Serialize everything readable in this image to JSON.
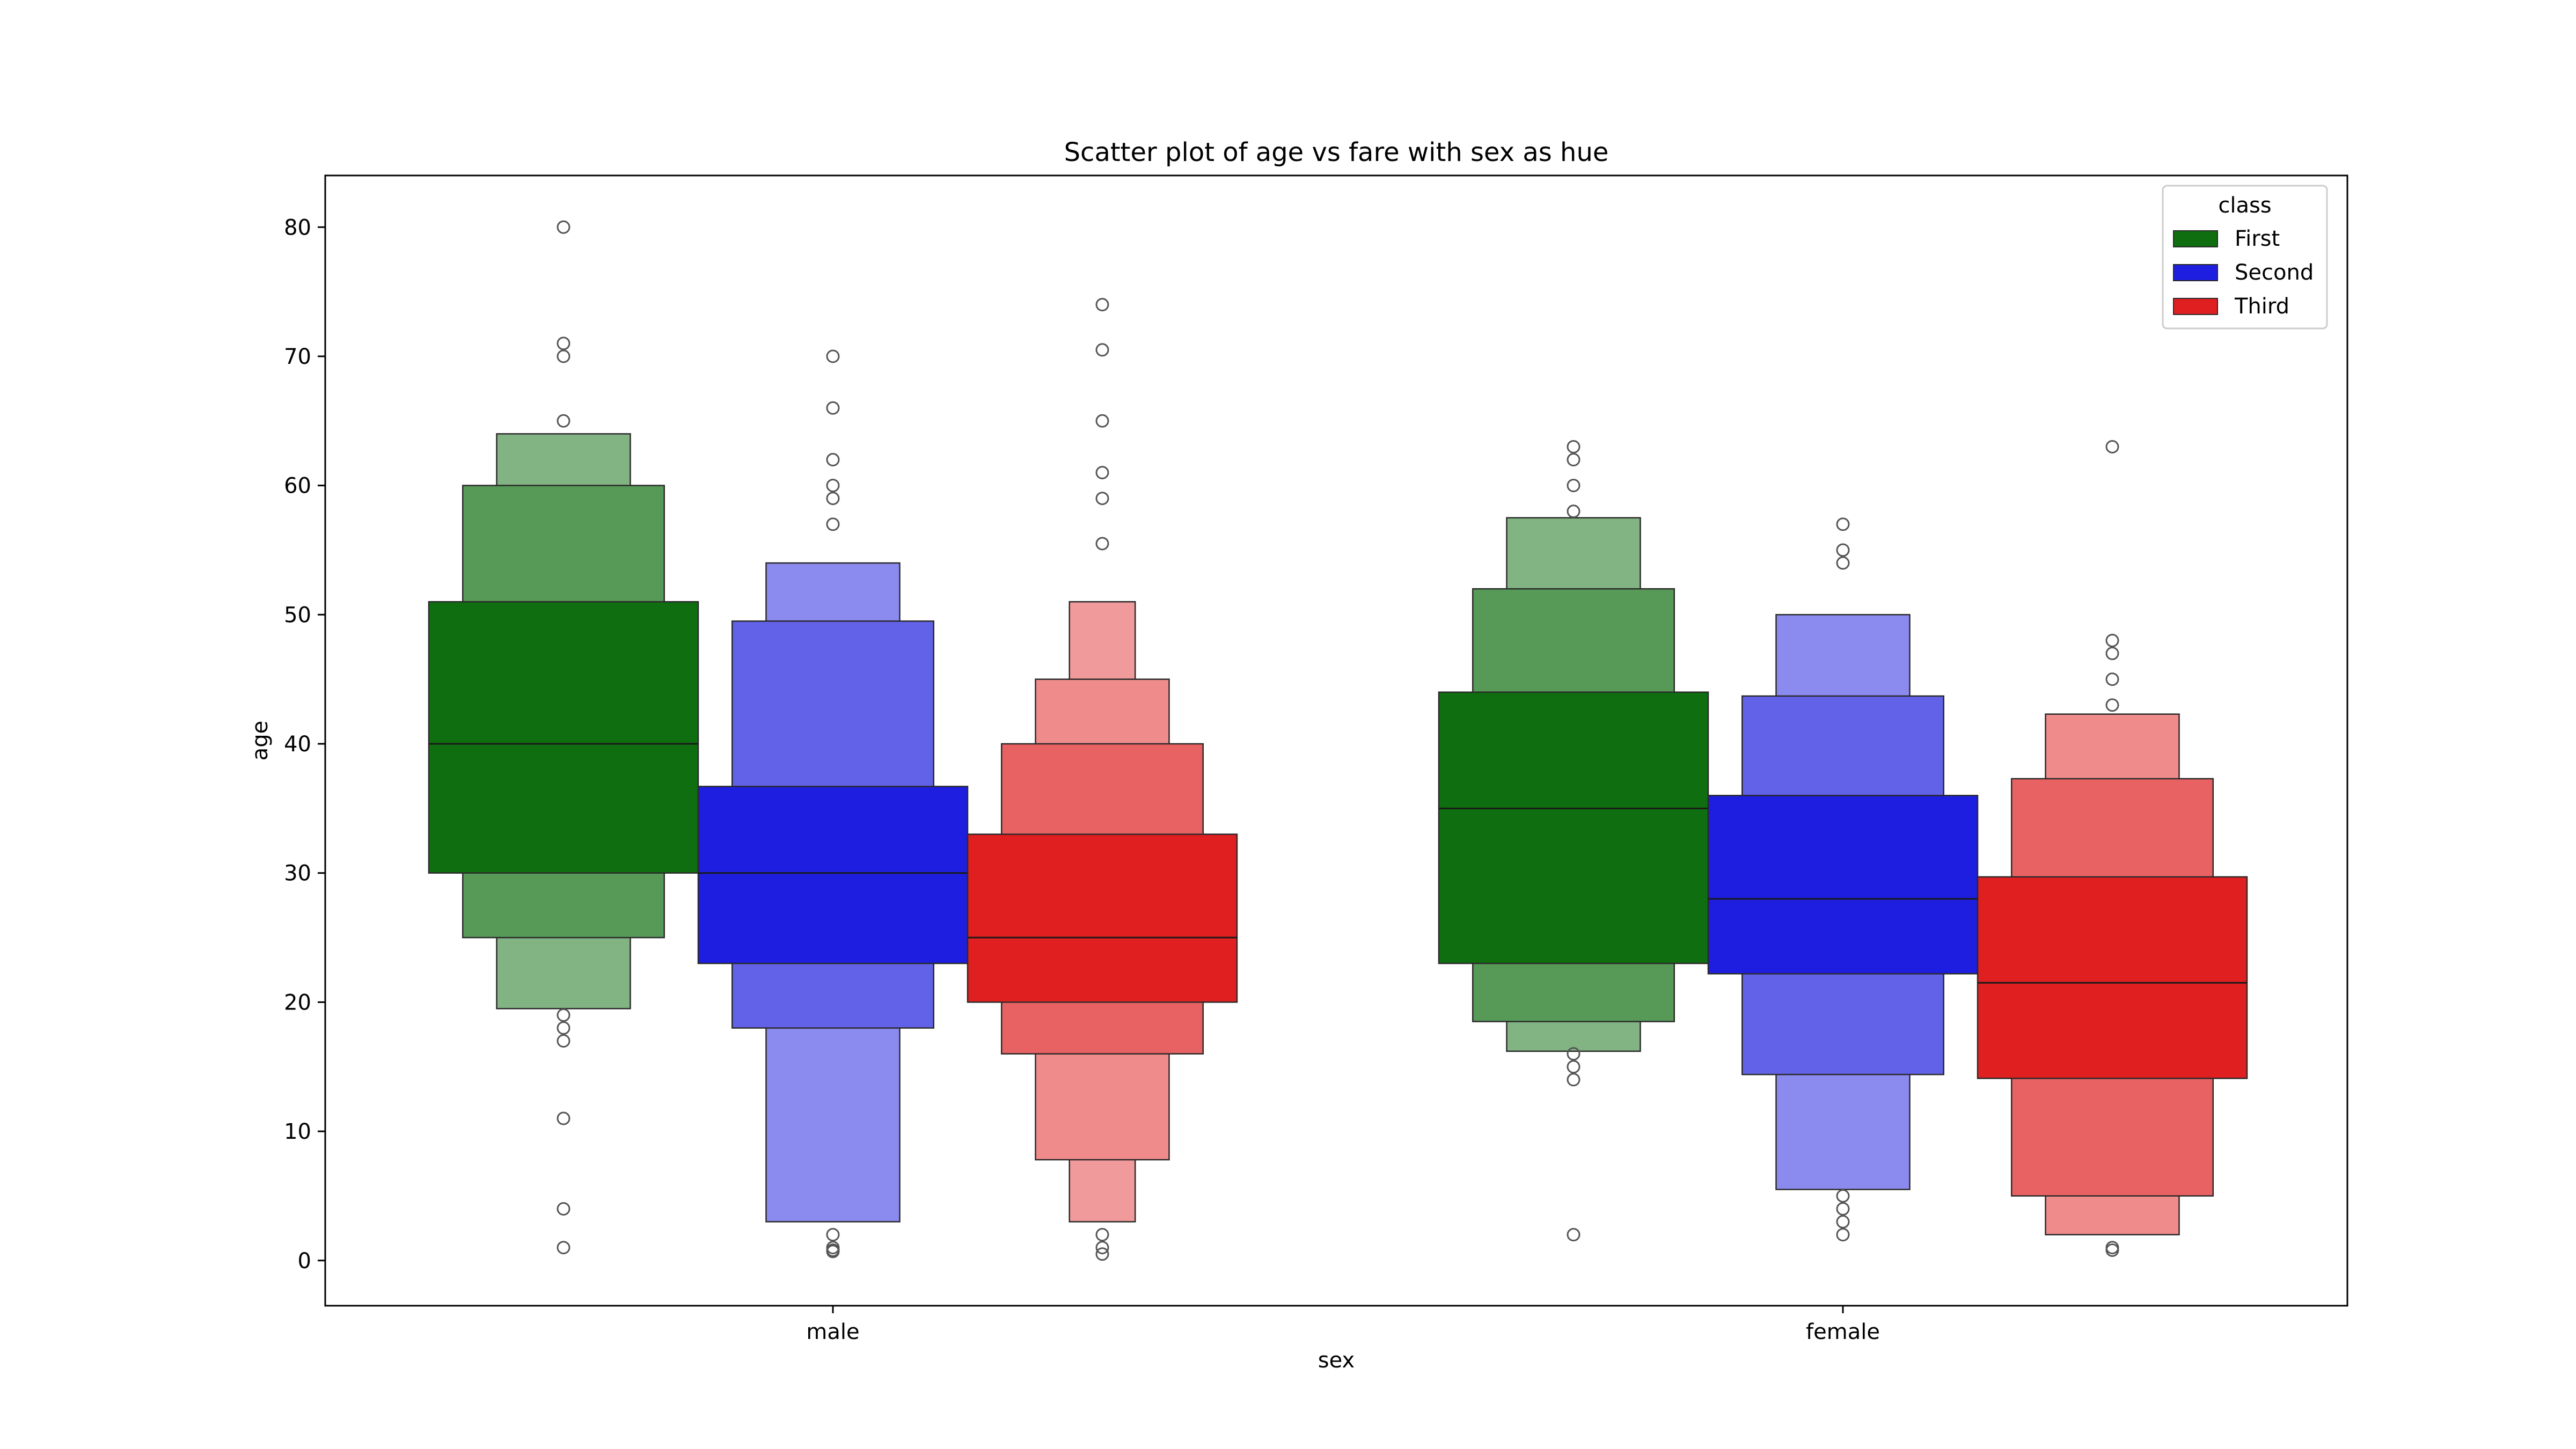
{
  "chart_data": {
    "type": "boxen",
    "title": "Scatter plot of age vs fare with sex as hue",
    "xlabel": "sex",
    "ylabel": "age",
    "ylim": [
      -3.5,
      84
    ],
    "yticks": [
      0,
      10,
      20,
      30,
      40,
      50,
      60,
      70,
      80
    ],
    "categories": [
      "male",
      "female"
    ],
    "legend": {
      "title": "class",
      "position": "top-right",
      "entries": [
        "First",
        "Second",
        "Third"
      ]
    },
    "colors": {
      "First": "#0f6f10",
      "Second": "#1e1ee0",
      "Third": "#e01f20"
    },
    "series": [
      {
        "name": "First",
        "groups": [
          {
            "category": "male",
            "median": 40,
            "boxes": [
              [
                30,
                51
              ],
              [
                25,
                60
              ],
              [
                19.5,
                64
              ]
            ],
            "outliers": [
              80,
              71,
              70,
              65,
              19,
              18,
              17,
              11,
              4,
              1
            ]
          },
          {
            "category": "female",
            "median": 35,
            "boxes": [
              [
                23,
                44
              ],
              [
                18.5,
                52
              ],
              [
                16.2,
                57.5
              ]
            ],
            "outliers": [
              63,
              62,
              60,
              58,
              16,
              15,
              14,
              2
            ]
          }
        ]
      },
      {
        "name": "Second",
        "groups": [
          {
            "category": "male",
            "median": 30,
            "boxes": [
              [
                23,
                36.7
              ],
              [
                18,
                49.5
              ],
              [
                3,
                54
              ]
            ],
            "outliers": [
              70,
              66,
              62,
              60,
              59,
              57,
              2,
              1,
              0.8,
              0.7
            ]
          },
          {
            "category": "female",
            "median": 28,
            "boxes": [
              [
                22.2,
                36
              ],
              [
                14.4,
                43.7
              ],
              [
                5.5,
                50
              ]
            ],
            "outliers": [
              57,
              55,
              54,
              5,
              4,
              3,
              2
            ]
          }
        ]
      },
      {
        "name": "Third",
        "groups": [
          {
            "category": "male",
            "median": 25,
            "boxes": [
              [
                20,
                33
              ],
              [
                16,
                40
              ],
              [
                7.8,
                45
              ],
              [
                3,
                51
              ]
            ],
            "outliers": [
              74,
              70.5,
              65,
              61,
              59,
              55.5,
              2,
              1,
              0.5
            ]
          },
          {
            "category": "female",
            "median": 21.5,
            "boxes": [
              [
                14.1,
                29.7
              ],
              [
                5,
                37.3
              ],
              [
                2,
                42.3
              ]
            ],
            "outliers": [
              63,
              48,
              47,
              45,
              43,
              1,
              0.8
            ]
          }
        ]
      }
    ]
  }
}
